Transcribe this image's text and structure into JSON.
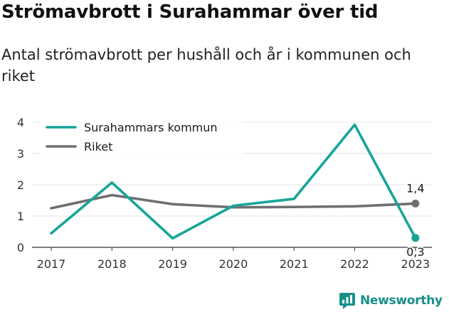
{
  "title": "Strömavbrott i Surahammar över tid",
  "subtitle": "Antal strömavbrott per hushåll och år i kommunen och riket",
  "brand": "Newsworthy",
  "chart_data": {
    "type": "line",
    "title": "Strömavbrott i Surahammar över tid",
    "subtitle": "Antal strömavbrott per hushåll och år i kommunen och riket",
    "x": [
      "2017",
      "2018",
      "2019",
      "2020",
      "2021",
      "2022",
      "2023"
    ],
    "ylim": [
      0,
      4
    ],
    "yticks": [
      "0",
      "1",
      "2",
      "3",
      "4"
    ],
    "grid": true,
    "legend_position": "top-left",
    "series": [
      {
        "name": "Surahammars kommun",
        "color": "#16a598",
        "values": [
          0.45,
          2.07,
          0.29,
          1.33,
          1.55,
          3.92,
          0.3
        ]
      },
      {
        "name": "Riket",
        "color": "#6f6f72",
        "values": [
          1.25,
          1.67,
          1.38,
          1.28,
          1.29,
          1.31,
          1.4
        ]
      }
    ],
    "annotations": [
      {
        "series": 0,
        "x": "2023",
        "text": "0,3"
      },
      {
        "series": 1,
        "x": "2023",
        "text": "1,4"
      }
    ]
  }
}
